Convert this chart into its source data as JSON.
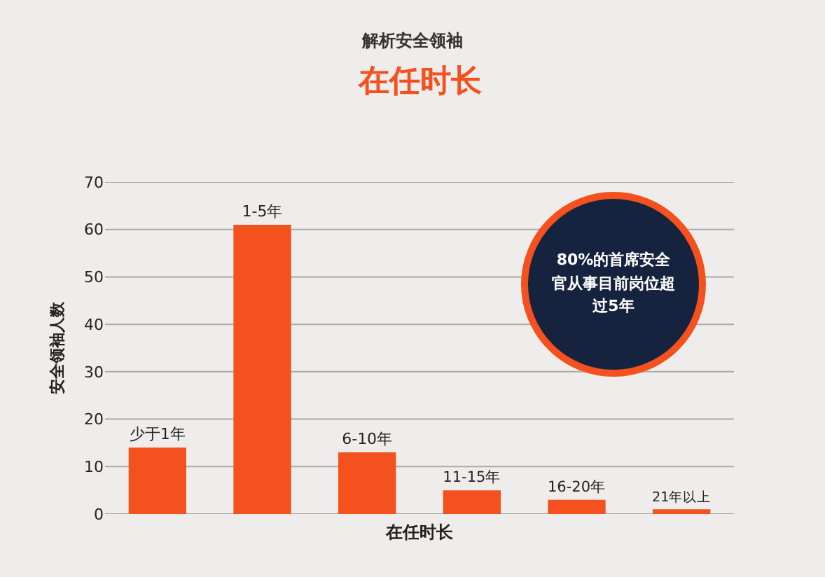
{
  "chart_data": {
    "type": "bar",
    "title": "解析安全领袖",
    "subtitle": "在任时长",
    "xlabel": "在任时长",
    "ylabel": "安全领袖人数",
    "categories": [
      "少于1年",
      "1-5年",
      "6-10年",
      "11-15年",
      "16-20年",
      "21年以上"
    ],
    "values": [
      14,
      61,
      13,
      5,
      3,
      1
    ],
    "color": "#f4511e",
    "ylim": [
      0,
      70
    ],
    "yticks": [
      0,
      10,
      20,
      30,
      40,
      50,
      60,
      70
    ],
    "grid": "y",
    "tick_labels": "y",
    "annotations": [
      "80%的首席安全官从事目前岗位超过5年"
    ]
  }
}
